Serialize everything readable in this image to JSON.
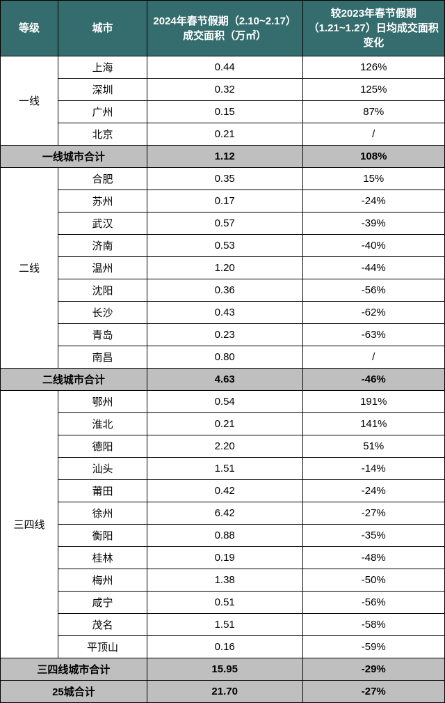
{
  "header": {
    "tier": "等级",
    "city": "城市",
    "area": "2024年春节假期（2.10~2.17）成交面积（万㎡）",
    "change": "较2023年春节假期（1.21~1.27）日均成交面积变化"
  },
  "groups": [
    {
      "tier": "一线",
      "rows": [
        {
          "city": "上海",
          "area": "0.44",
          "change": "126%"
        },
        {
          "city": "深圳",
          "area": "0.32",
          "change": "125%"
        },
        {
          "city": "广州",
          "area": "0.15",
          "change": "87%"
        },
        {
          "city": "北京",
          "area": "0.21",
          "change": "/"
        }
      ],
      "subtotal": {
        "label": "一线城市合计",
        "area": "1.12",
        "change": "108%"
      }
    },
    {
      "tier": "二线",
      "rows": [
        {
          "city": "合肥",
          "area": "0.35",
          "change": "15%"
        },
        {
          "city": "苏州",
          "area": "0.17",
          "change": "-24%"
        },
        {
          "city": "武汉",
          "area": "0.57",
          "change": "-39%"
        },
        {
          "city": "济南",
          "area": "0.53",
          "change": "-40%"
        },
        {
          "city": "温州",
          "area": "1.20",
          "change": "-44%"
        },
        {
          "city": "沈阳",
          "area": "0.36",
          "change": "-56%"
        },
        {
          "city": "长沙",
          "area": "0.43",
          "change": "-62%"
        },
        {
          "city": "青岛",
          "area": "0.23",
          "change": "-63%"
        },
        {
          "city": "南昌",
          "area": "0.80",
          "change": "/"
        }
      ],
      "subtotal": {
        "label": "二线城市合计",
        "area": "4.63",
        "change": "-46%"
      }
    },
    {
      "tier": "三四线",
      "rows": [
        {
          "city": "鄂州",
          "area": "0.54",
          "change": "191%"
        },
        {
          "city": "淮北",
          "area": "0.21",
          "change": "141%"
        },
        {
          "city": "德阳",
          "area": "2.20",
          "change": "51%"
        },
        {
          "city": "汕头",
          "area": "1.51",
          "change": "-14%"
        },
        {
          "city": "莆田",
          "area": "0.42",
          "change": "-24%"
        },
        {
          "city": "徐州",
          "area": "6.42",
          "change": "-27%"
        },
        {
          "city": "衡阳",
          "area": "0.88",
          "change": "-35%"
        },
        {
          "city": "桂林",
          "area": "0.19",
          "change": "-48%"
        },
        {
          "city": "梅州",
          "area": "1.38",
          "change": "-50%"
        },
        {
          "city": "咸宁",
          "area": "0.51",
          "change": "-56%"
        },
        {
          "city": "茂名",
          "area": "1.51",
          "change": "-58%"
        },
        {
          "city": "平顶山",
          "area": "0.16",
          "change": "-59%"
        }
      ],
      "subtotal": {
        "label": "三四线城市合计",
        "area": "15.95",
        "change": "-29%"
      }
    }
  ],
  "total": {
    "label": "25城合计",
    "area": "21.70",
    "change": "-27%"
  },
  "colors": {
    "header_bg": "#356c6d",
    "header_fg": "#ffffff",
    "subtotal_bg": "#bfbfbf",
    "border": "#000000",
    "bg": "#ffffff"
  }
}
